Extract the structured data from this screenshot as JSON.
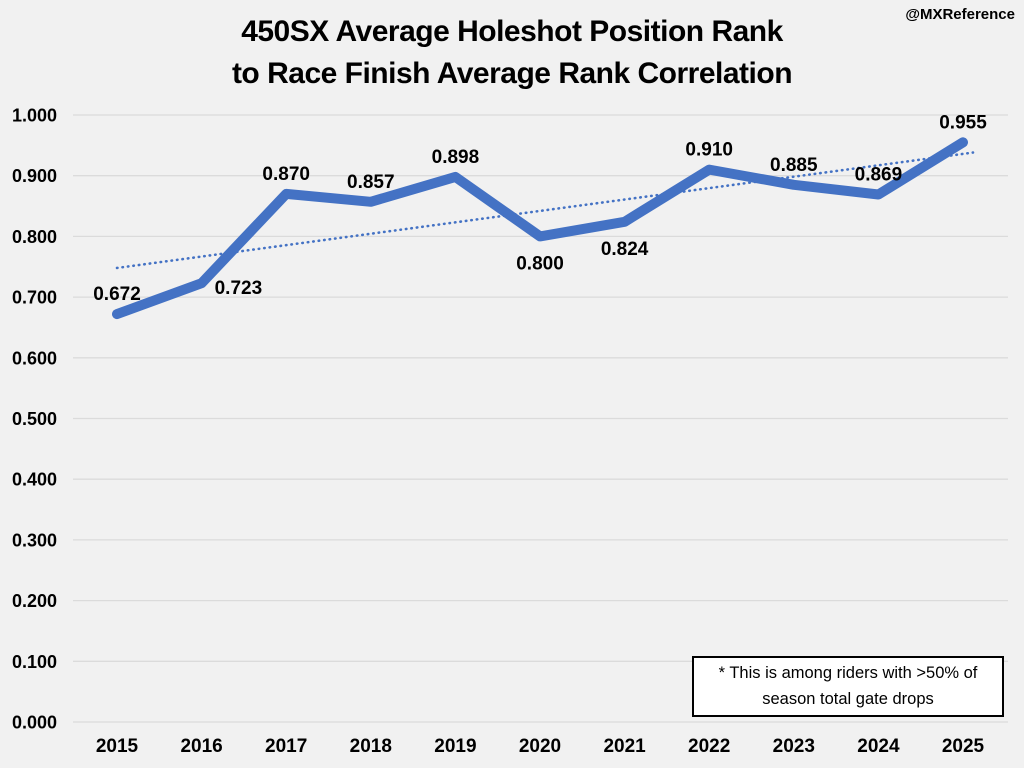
{
  "watermark": "@MXReference",
  "chart_data": {
    "type": "line",
    "title": "450SX Average Holeshot Position Rank to Race Finish Average Rank Correlation",
    "title_lines": [
      "450SX Average Holeshot Position Rank",
      "to Race Finish Average Rank Correlation"
    ],
    "xlabel": "",
    "ylabel": "",
    "categories": [
      "2015",
      "2016",
      "2017",
      "2018",
      "2019",
      "2020",
      "2021",
      "2022",
      "2023",
      "2024",
      "2025"
    ],
    "values": [
      0.672,
      0.723,
      0.87,
      0.857,
      0.898,
      0.8,
      0.824,
      0.91,
      0.885,
      0.869,
      0.955
    ],
    "value_labels": [
      "0.672",
      "0.723",
      "0.870",
      "0.857",
      "0.898",
      "0.800",
      "0.824",
      "0.910",
      "0.885",
      "0.869",
      "0.955"
    ],
    "label_positions": [
      "above",
      "right",
      "above",
      "above",
      "above",
      "below",
      "below",
      "above",
      "above",
      "above",
      "above"
    ],
    "ylim": [
      0,
      1
    ],
    "ytick_values": [
      0.0,
      0.1,
      0.2,
      0.3,
      0.4,
      0.5,
      0.6,
      0.7,
      0.8,
      0.9,
      1.0
    ],
    "ytick_labels": [
      "0.000",
      "0.100",
      "0.200",
      "0.300",
      "0.400",
      "0.500",
      "0.600",
      "0.700",
      "0.800",
      "0.900",
      "1.000"
    ],
    "grid": true,
    "legend": "none",
    "trendline": {
      "style": "dotted",
      "start_value": 0.748,
      "end_value": 0.936
    },
    "annotation": {
      "lines": [
        "* This is among riders with >50% of",
        "season total gate drops"
      ]
    },
    "colors": {
      "series": "#4472C4",
      "trend": "#4472C4",
      "grid": "#DBDBDB",
      "background": "#F1F1F1",
      "text": "#000000"
    }
  }
}
